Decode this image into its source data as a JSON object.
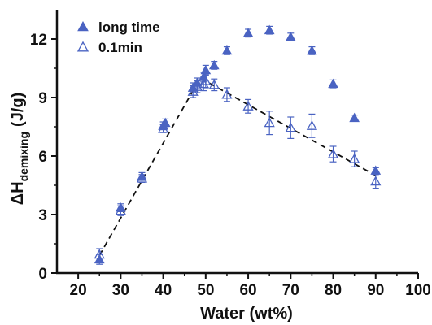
{
  "chart_data": {
    "type": "scatter",
    "xlabel": "Water (wt%)",
    "ylabel": {
      "prefix": "ΔH",
      "subscript": "demixing",
      "unit": "(J/g)"
    },
    "xlim": [
      15,
      100
    ],
    "ylim": [
      0,
      13.5
    ],
    "xticks": [
      20,
      30,
      40,
      50,
      60,
      70,
      80,
      90,
      100
    ],
    "yticks": [
      0,
      3,
      6,
      9,
      12
    ],
    "grid": false,
    "legend_position": "top-left",
    "colors": {
      "marker": "#4a63c2",
      "trend": "#111111",
      "axis": "#111111"
    },
    "series": [
      {
        "name": "long time",
        "marker": "filled-triangle",
        "points": [
          {
            "x": 25,
            "y": 0.7,
            "err": 0.25
          },
          {
            "x": 30,
            "y": 3.35,
            "err": 0.2
          },
          {
            "x": 35,
            "y": 4.95,
            "err": 0.2
          },
          {
            "x": 40,
            "y": 7.55,
            "err": 0.2
          },
          {
            "x": 40.5,
            "y": 7.7,
            "err": 0.2
          },
          {
            "x": 47,
            "y": 9.5,
            "err": 0.25
          },
          {
            "x": 48,
            "y": 9.75,
            "err": 0.25
          },
          {
            "x": 49.5,
            "y": 10.05,
            "err": 0.25
          },
          {
            "x": 50,
            "y": 10.4,
            "err": 0.25
          },
          {
            "x": 52,
            "y": 10.65,
            "err": 0.2
          },
          {
            "x": 55,
            "y": 11.4,
            "err": 0.2
          },
          {
            "x": 60,
            "y": 12.3,
            "err": 0.2
          },
          {
            "x": 65,
            "y": 12.45,
            "err": 0.2
          },
          {
            "x": 70,
            "y": 12.1,
            "err": 0.2
          },
          {
            "x": 75,
            "y": 11.4,
            "err": 0.2
          },
          {
            "x": 80,
            "y": 9.7,
            "err": 0.2
          },
          {
            "x": 85,
            "y": 7.95,
            "err": 0.15
          },
          {
            "x": 90,
            "y": 5.25,
            "err": 0.15
          }
        ]
      },
      {
        "name": "0.1min",
        "marker": "open-triangle",
        "points": [
          {
            "x": 25,
            "y": 0.95,
            "err": 0.3
          },
          {
            "x": 30,
            "y": 3.2,
            "err": 0.25
          },
          {
            "x": 35,
            "y": 4.85,
            "err": 0.2
          },
          {
            "x": 40,
            "y": 7.4,
            "err": 0.2
          },
          {
            "x": 47,
            "y": 9.3,
            "err": 0.3
          },
          {
            "x": 48,
            "y": 9.55,
            "err": 0.3
          },
          {
            "x": 49.5,
            "y": 9.7,
            "err": 0.35
          },
          {
            "x": 50,
            "y": 9.85,
            "err": 0.35
          },
          {
            "x": 52,
            "y": 9.65,
            "err": 0.3
          },
          {
            "x": 55,
            "y": 9.15,
            "err": 0.35
          },
          {
            "x": 60,
            "y": 8.55,
            "err": 0.35
          },
          {
            "x": 65,
            "y": 7.7,
            "err": 0.6
          },
          {
            "x": 70,
            "y": 7.45,
            "err": 0.55
          },
          {
            "x": 75,
            "y": 7.55,
            "err": 0.6
          },
          {
            "x": 80,
            "y": 6.1,
            "err": 0.4
          },
          {
            "x": 85,
            "y": 5.85,
            "err": 0.4
          },
          {
            "x": 90,
            "y": 4.7,
            "err": 0.35
          }
        ]
      }
    ],
    "trend_line": [
      {
        "x": 25,
        "y": 0.9
      },
      {
        "x": 48.7,
        "y": 10.0
      },
      {
        "x": 90,
        "y": 5.0
      }
    ]
  }
}
